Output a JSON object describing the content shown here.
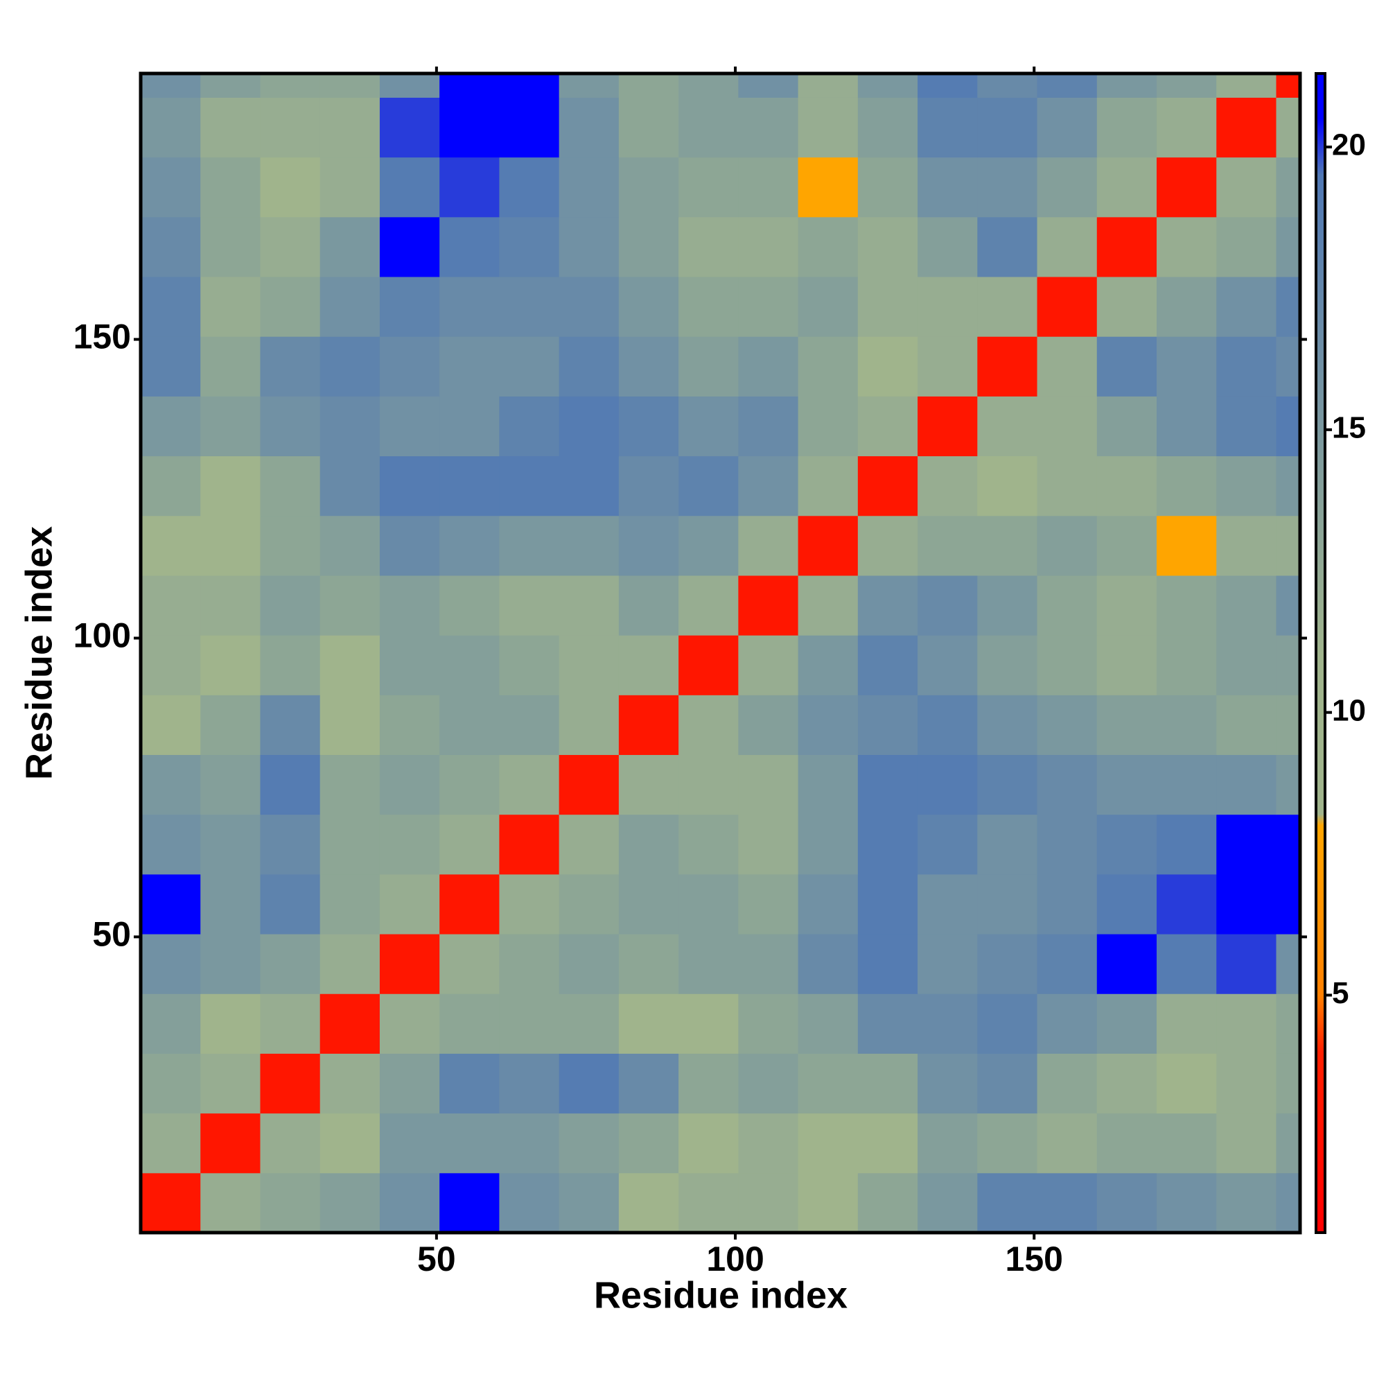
{
  "chart_data": {
    "type": "heatmap",
    "xlabel": "Residue index",
    "ylabel": "Residue index",
    "xlim": [
      0.5,
      194.5
    ],
    "ylim": [
      0.5,
      194.5
    ],
    "xticks": [
      50,
      100,
      150
    ],
    "yticks": [
      50,
      100,
      150
    ],
    "x_bins": [
      0.5,
      10.5,
      20.5,
      30.5,
      40.5,
      50.5,
      60.5,
      70.5,
      80.5,
      90.5,
      100.5,
      110.5,
      120.5,
      130.5,
      140.5,
      150.5,
      160.5,
      170.5,
      180.5,
      190.5,
      194.5
    ],
    "y_bins": [
      0.5,
      10.5,
      20.5,
      30.5,
      40.5,
      50.5,
      60.5,
      70.5,
      80.5,
      90.5,
      100.5,
      110.5,
      120.5,
      130.5,
      140.5,
      150.5,
      160.5,
      170.5,
      180.5,
      190.5,
      194.5
    ],
    "z": [
      [
        3,
        12,
        13,
        14,
        16,
        21,
        16,
        15,
        9,
        12,
        12,
        9,
        13,
        15,
        18,
        18,
        17,
        16,
        15,
        16
      ],
      [
        12,
        3,
        12,
        11,
        15,
        15,
        15,
        14,
        13,
        9,
        12,
        11,
        10,
        14,
        13,
        12,
        13,
        13,
        12,
        14
      ],
      [
        13,
        12,
        3,
        12,
        14,
        18,
        17,
        19,
        17,
        13,
        14,
        13,
        13,
        16,
        17,
        13,
        12,
        11,
        12,
        13
      ],
      [
        14,
        11,
        12,
        3,
        12,
        13,
        13,
        13,
        11,
        9,
        13,
        14,
        17,
        17,
        18,
        16,
        15,
        12,
        12,
        13
      ],
      [
        16,
        15,
        14,
        12,
        3,
        12,
        13,
        14,
        13,
        14,
        14,
        17,
        19,
        16,
        17,
        18,
        21,
        19,
        20,
        16
      ],
      [
        21,
        15,
        18,
        13,
        12,
        3,
        12,
        13,
        14,
        14,
        13,
        16,
        19,
        16,
        16,
        17,
        19,
        20,
        21,
        21
      ],
      [
        16,
        15,
        17,
        13,
        13,
        12,
        3,
        12,
        14,
        13,
        12,
        15,
        19,
        18,
        16,
        17,
        18,
        19,
        21,
        21
      ],
      [
        15,
        14,
        19,
        13,
        14,
        13,
        12,
        3,
        12,
        12,
        12,
        15,
        19,
        19,
        18,
        17,
        16,
        16,
        16,
        15
      ],
      [
        9,
        13,
        17,
        11,
        13,
        14,
        14,
        12,
        3,
        12,
        14,
        16,
        17,
        18,
        16,
        15,
        14,
        14,
        13,
        13
      ],
      [
        12,
        9,
        13,
        9,
        14,
        14,
        13,
        12,
        12,
        3,
        12,
        15,
        18,
        16,
        14,
        13,
        12,
        13,
        14,
        14
      ],
      [
        12,
        12,
        14,
        13,
        14,
        13,
        12,
        12,
        14,
        12,
        3,
        12,
        16,
        17,
        15,
        13,
        12,
        13,
        14,
        16
      ],
      [
        9,
        11,
        13,
        14,
        17,
        16,
        15,
        15,
        16,
        15,
        12,
        3,
        12,
        13,
        13,
        14,
        13,
        8,
        12,
        12
      ],
      [
        13,
        10,
        13,
        17,
        19,
        19,
        19,
        19,
        17,
        18,
        16,
        12,
        3,
        12,
        11,
        12,
        12,
        13,
        14,
        15
      ],
      [
        15,
        14,
        16,
        17,
        16,
        16,
        18,
        19,
        18,
        16,
        17,
        13,
        12,
        3,
        12,
        12,
        14,
        16,
        18,
        19
      ],
      [
        18,
        13,
        17,
        18,
        17,
        16,
        16,
        18,
        16,
        14,
        15,
        13,
        11,
        12,
        3,
        12,
        18,
        16,
        18,
        17
      ],
      [
        18,
        12,
        13,
        16,
        18,
        17,
        17,
        17,
        15,
        13,
        13,
        14,
        12,
        12,
        12,
        3,
        12,
        14,
        16,
        18
      ],
      [
        17,
        13,
        12,
        15,
        21,
        19,
        18,
        16,
        14,
        12,
        12,
        13,
        12,
        14,
        18,
        12,
        3,
        12,
        13,
        15
      ],
      [
        16,
        13,
        11,
        12,
        19,
        20,
        19,
        16,
        14,
        13,
        13,
        8,
        13,
        16,
        16,
        14,
        12,
        3,
        12,
        14
      ],
      [
        15,
        12,
        12,
        12,
        20,
        21,
        21,
        16,
        13,
        14,
        14,
        12,
        14,
        18,
        18,
        16,
        13,
        12,
        3,
        12
      ],
      [
        16,
        14,
        13,
        13,
        16,
        21,
        21,
        15,
        13,
        14,
        16,
        12,
        15,
        19,
        17,
        18,
        15,
        14,
        12,
        3
      ]
    ],
    "colorbar": {
      "lim": [
        0.8,
        21.3
      ],
      "ticks": [
        5,
        10,
        15,
        20
      ],
      "stops": [
        {
          "value": 0.8,
          "color": "#ff0000"
        },
        {
          "value": 4,
          "color": "#ff2000"
        },
        {
          "value": 5,
          "color": "#ff8000"
        },
        {
          "value": 8,
          "color": "#ffa500"
        },
        {
          "value": 8.2,
          "color": "#a0b48c"
        },
        {
          "value": 11,
          "color": "#a0b48c"
        },
        {
          "value": 19.5,
          "color": "#5078b4"
        },
        {
          "value": 20.5,
          "color": "#0000ff"
        },
        {
          "value": 21.3,
          "color": "#0000ff"
        }
      ]
    }
  }
}
